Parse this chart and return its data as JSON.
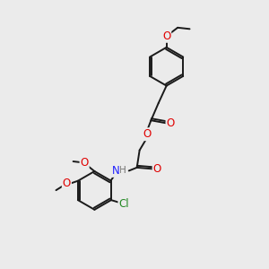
{
  "background_color": "#ebebeb",
  "bond_color": "#1a1a1a",
  "atom_colors": {
    "O": "#e00000",
    "N": "#2020ff",
    "Cl": "#228822",
    "H": "#707070"
  },
  "lw": 1.4,
  "fs": 8.5,
  "fs_sub": 7.0
}
